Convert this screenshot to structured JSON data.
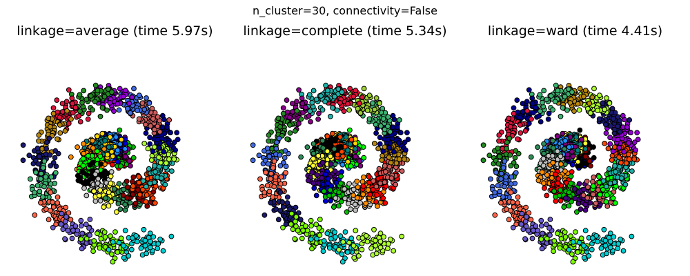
{
  "figure": {
    "suptitle": "n_cluster=30, connectivity=False"
  },
  "chart_data": [
    {
      "type": "scatter",
      "title": "linkage=average (time 5.97s)",
      "axes": "off",
      "xlim": [
        -15,
        15
      ],
      "ylim": [
        -15,
        15
      ],
      "spiral": {
        "turns_rad": [
          0.5,
          11.5
        ],
        "radius_scale": 1.05,
        "noise": 0.9
      },
      "n_points": 1500,
      "n_clusters": 30,
      "palette": [
        "#ff0000",
        "#00bf00",
        "#800080",
        "#0000cd",
        "#1e90ff",
        "#ffd700",
        "#008080",
        "#ff8c00",
        "#00ff00",
        "#000000",
        "#c0c0c0",
        "#ffff33",
        "#2e8b57",
        "#8b0000",
        "#ff4500",
        "#20b2aa",
        "#adff2f",
        "#00008b",
        "#cd5c5c",
        "#4169e1",
        "#9400d3",
        "#228b22",
        "#dc143c",
        "#b8860b",
        "#191970",
        "#3cb371",
        "#ff6347",
        "#6a5acd",
        "#7cfc00",
        "#00ced1"
      ]
    },
    {
      "type": "scatter",
      "title": "linkage=complete (time 5.34s)",
      "axes": "off",
      "xlim": [
        -15,
        15
      ],
      "ylim": [
        -15,
        15
      ],
      "spiral": {
        "turns_rad": [
          0.5,
          11.5
        ],
        "radius_scale": 1.05,
        "noise": 0.9
      },
      "n_points": 1500,
      "n_clusters": 30,
      "palette": [
        "#1e90ff",
        "#00ff00",
        "#800080",
        "#ffd700",
        "#008080",
        "#ff4500",
        "#000000",
        "#2e8b57",
        "#ffff33",
        "#4b0082",
        "#0000cd",
        "#00bf00",
        "#c0c0c0",
        "#ff8c00",
        "#ff0000",
        "#cd5c5c",
        "#b8860b",
        "#00008b",
        "#3cb371",
        "#9acd32",
        "#dc143c",
        "#20b2aa",
        "#8b008b",
        "#228b22",
        "#4169e1",
        "#ff6347",
        "#191970",
        "#7cfc00",
        "#00ced1",
        "#adff2f"
      ]
    },
    {
      "type": "scatter",
      "title": "linkage=ward (time 4.41s)",
      "axes": "off",
      "xlim": [
        -15,
        15
      ],
      "ylim": [
        -15,
        15
      ],
      "spiral": {
        "turns_rad": [
          0.5,
          11.5
        ],
        "radius_scale": 1.05,
        "noise": 0.9
      },
      "n_points": 1500,
      "n_clusters": 30,
      "palette": [
        "#0000cd",
        "#000000",
        "#8b0000",
        "#ffff33",
        "#008080",
        "#800080",
        "#1e90ff",
        "#2e8b57",
        "#c0c0c0",
        "#ff8c00",
        "#ff0000",
        "#00bf00",
        "#4b0082",
        "#cd5c5c",
        "#00ff00",
        "#20b2aa",
        "#ff4500",
        "#9400d3",
        "#191970",
        "#adff2f",
        "#b8860b",
        "#3cb371",
        "#00008b",
        "#dc143c",
        "#228b22",
        "#4169e1",
        "#ff6347",
        "#6a5acd",
        "#7cfc00",
        "#00ced1"
      ]
    }
  ]
}
